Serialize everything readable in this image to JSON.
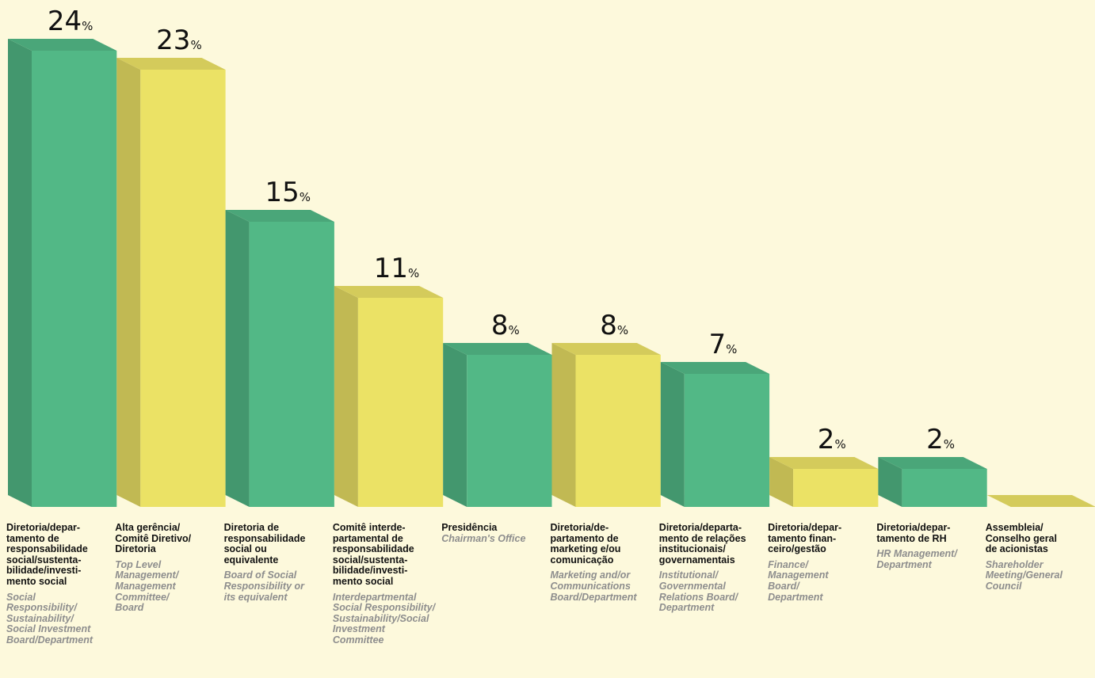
{
  "chart_data": {
    "type": "bar3d",
    "categories": [
      "Diretoria/depar-\ntamento de\nresponsabilidade\nsocial/sustenta-\nbilidade/investi-\nmento social",
      "Alta gerência/\nComitê Diretivo/\nDiretoria",
      "Diretoria de\nresponsabilidade\nsocial ou\nequivalente",
      "Comitê interde-\npartamental de\nresponsabilidade\nsocial/sustenta-\nbilidade/investi-\nmento social",
      "Presidência",
      "Diretoria/de-\npartamento de\nmarketing e/ou\ncomunicação",
      "Diretoria/departa-\nmento de relações\ninstitucionais/\ngovernamentais",
      "Diretoria/depar-\ntamento finan-\nceiro/gestão",
      "Diretoria/depar-\ntamento de RH",
      "Assembleia/\nConselho geral\nde acionistas"
    ],
    "categories_en": [
      "Social\nResponsibility/\nSustainability/\nSocial Investment\nBoard/Department",
      "Top Level\nManagement/\nManagement\nCommittee/\nBoard",
      "Board of Social\nResponsibility or\nits equivalent",
      "Interdepartmental\nSocial Responsibility/\nSustainability/Social\nInvestment\nCommittee",
      "Chairman's Office",
      "Marketing and/or\nCommunications\nBoard/Department",
      "Institutional/\nGovernmental\nRelations Board/\nDepartment",
      "Finance/\nManagement\nBoard/\nDepartment",
      "HR Management/\nDepartment",
      "Shareholder\nMeeting/General\nCouncil"
    ],
    "values": [
      24,
      23,
      15,
      11,
      8,
      8,
      7,
      2,
      2,
      0
    ],
    "unit": "%",
    "colors": [
      "#52b886",
      "#ebe265",
      "#52b886",
      "#ebe265",
      "#52b886",
      "#ebe265",
      "#52b886",
      "#ebe265",
      "#52b886",
      "#ebe265"
    ],
    "ylim": [
      0,
      25
    ]
  }
}
